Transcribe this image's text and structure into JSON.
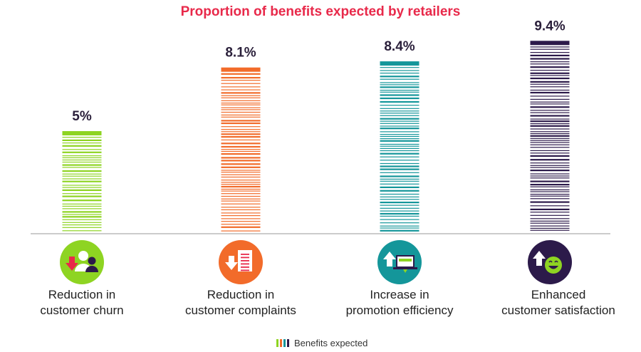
{
  "chart_data": {
    "type": "bar",
    "title": "Proportion of benefits expected by retailers",
    "categories": [
      [
        "Reduction in",
        "customer churn"
      ],
      [
        "Reduction in",
        "customer complaints"
      ],
      [
        "Increase in",
        "promotion efficiency"
      ],
      [
        "Enhanced",
        "customer satisfaction"
      ]
    ],
    "series": [
      {
        "name": "Benefits expected",
        "values": [
          5,
          8.1,
          8.4,
          9.4
        ],
        "value_labels": [
          "5%",
          "8.1%",
          "8.4%",
          "9.4%"
        ]
      }
    ],
    "colors": [
      "#8ed422",
      "#f26b2a",
      "#14969a",
      "#2c1a4a"
    ],
    "icons": [
      "churn-down-users-icon",
      "complaints-down-document-icon",
      "promotion-up-laptop-icon",
      "satisfaction-up-smiley-icon"
    ],
    "ylim": [
      0,
      10
    ],
    "grid": false,
    "legend_position": "bottom-center"
  }
}
